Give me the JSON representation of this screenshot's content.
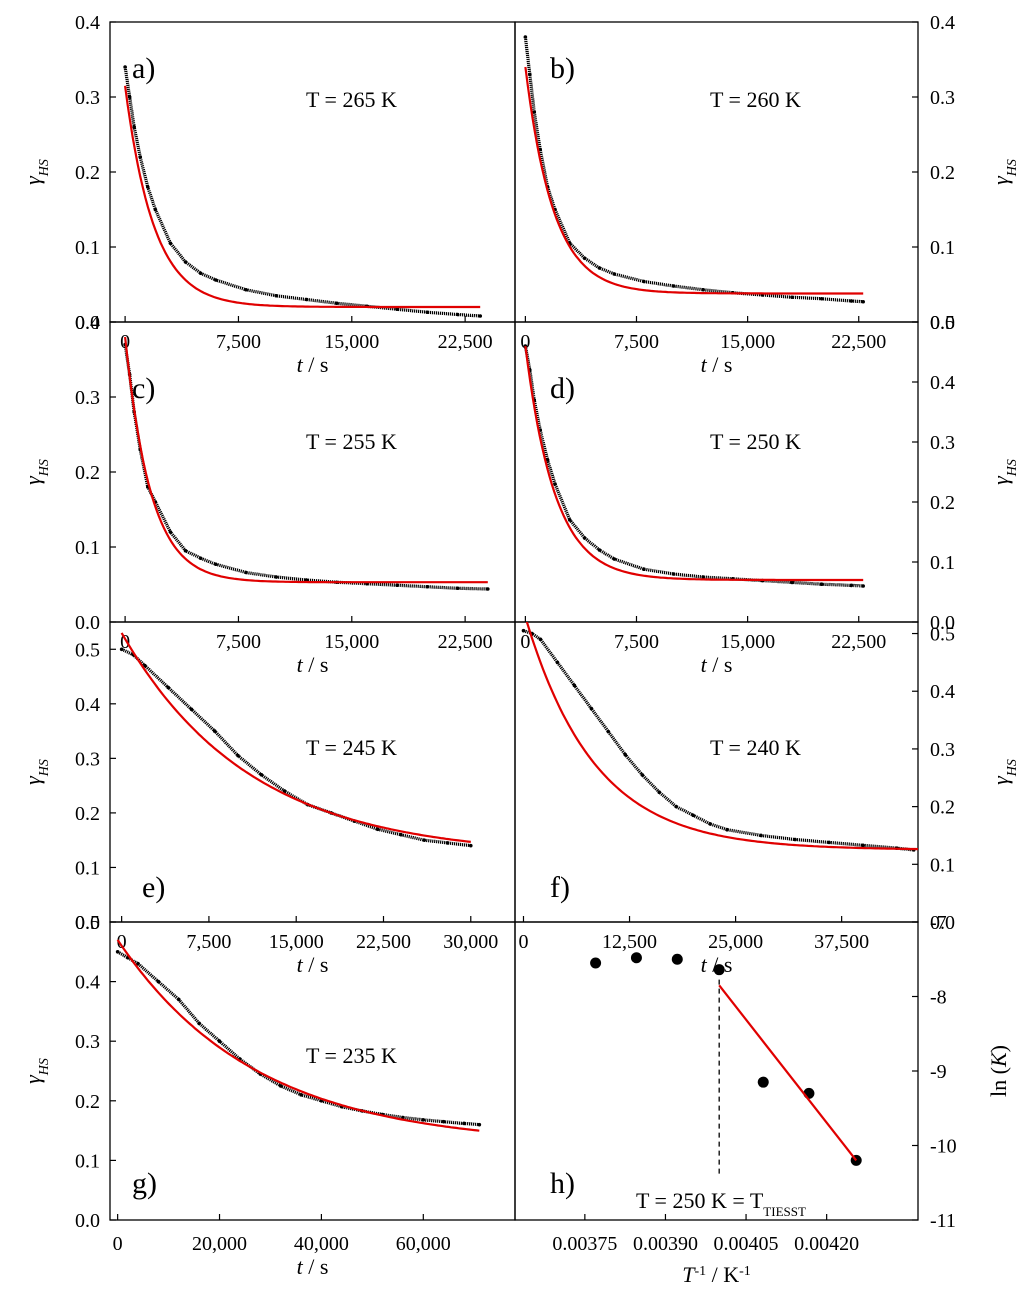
{
  "colors": {
    "data": "#000000",
    "fit": "#e00000",
    "axis": "#000000"
  },
  "chart_data": [
    {
      "id": "a",
      "type": "scatter",
      "panel_label": "a)",
      "annotation": "T = 265 K",
      "ylabel": "γHS",
      "ylabel_main": "γ",
      "ylabel_sub": "HS",
      "ylabel_side": "left",
      "xlabel_main": "t",
      "xlabel_unit": " / s",
      "ylim": [
        0,
        0.4
      ],
      "yticks": [
        "0.0",
        "0.1",
        "0.2",
        "0.3",
        "0.4"
      ],
      "xlim": [
        -1000,
        25800
      ],
      "xticks": [
        "0",
        "7,500",
        "15,000",
        "22,500"
      ],
      "series": [
        {
          "kind": "points",
          "x": [
            0,
            300,
            600,
            1000,
            1500,
            2000,
            3000,
            4000,
            5000,
            6000,
            8000,
            10000,
            12000,
            14000,
            16000,
            18000,
            20000,
            22000,
            23500
          ],
          "y": [
            0.34,
            0.3,
            0.26,
            0.22,
            0.18,
            0.15,
            0.105,
            0.08,
            0.065,
            0.056,
            0.043,
            0.035,
            0.03,
            0.025,
            0.021,
            0.017,
            0.013,
            0.01,
            0.008
          ]
        },
        {
          "kind": "fit",
          "y0": 0.02,
          "A": 0.295,
          "tau": 1900,
          "xmax": 23500
        }
      ]
    },
    {
      "id": "b",
      "type": "scatter",
      "panel_label": "b)",
      "annotation": "T = 260 K",
      "ylabel": "γHS",
      "ylabel_main": "γ",
      "ylabel_sub": "HS",
      "ylabel_side": "right",
      "xlabel_main": "t",
      "xlabel_unit": " / s",
      "ylim": [
        0,
        0.4
      ],
      "yticks": [
        "0.0",
        "0.1",
        "0.2",
        "0.3",
        "0.4"
      ],
      "xlim": [
        -700,
        26500
      ],
      "xticks": [
        "0",
        "7,500",
        "15,000",
        "22,500"
      ],
      "series": [
        {
          "kind": "points",
          "x": [
            0,
            300,
            600,
            1000,
            1500,
            2000,
            3000,
            4000,
            5000,
            6000,
            8000,
            10000,
            12000,
            14000,
            16000,
            18000,
            20000,
            22000,
            22800
          ],
          "y": [
            0.38,
            0.33,
            0.28,
            0.23,
            0.18,
            0.15,
            0.105,
            0.085,
            0.072,
            0.064,
            0.054,
            0.048,
            0.043,
            0.039,
            0.036,
            0.033,
            0.031,
            0.028,
            0.027
          ]
        },
        {
          "kind": "fit",
          "y0": 0.038,
          "A": 0.302,
          "tau": 1900,
          "xmax": 22800
        }
      ]
    },
    {
      "id": "c",
      "type": "scatter",
      "panel_label": "c)",
      "annotation": "T = 255 K",
      "ylabel": "γHS",
      "ylabel_main": "γ",
      "ylabel_sub": "HS",
      "ylabel_side": "left",
      "xlabel_main": "t",
      "xlabel_unit": " / s",
      "ylim": [
        0,
        0.4
      ],
      "yticks": [
        "0.0",
        "0.1",
        "0.2",
        "0.3",
        "0.4"
      ],
      "xlim": [
        -1000,
        25800
      ],
      "xticks": [
        "0",
        "7,500",
        "15,000",
        "22,500"
      ],
      "series": [
        {
          "kind": "points",
          "x": [
            0,
            300,
            600,
            1000,
            1500,
            2000,
            3000,
            4000,
            5000,
            6000,
            8000,
            10000,
            12000,
            14000,
            16000,
            18000,
            20000,
            22000,
            24000
          ],
          "y": [
            0.37,
            0.33,
            0.28,
            0.23,
            0.18,
            0.16,
            0.12,
            0.095,
            0.085,
            0.077,
            0.066,
            0.06,
            0.056,
            0.053,
            0.051,
            0.049,
            0.047,
            0.045,
            0.044
          ]
        },
        {
          "kind": "fit",
          "y0": 0.053,
          "A": 0.327,
          "tau": 1700,
          "xmax": 24000
        }
      ]
    },
    {
      "id": "d",
      "type": "scatter",
      "panel_label": "d)",
      "annotation": "T = 250 K",
      "ylabel": "γHS",
      "ylabel_main": "γ",
      "ylabel_sub": "HS",
      "ylabel_side": "right",
      "xlabel_main": "t",
      "xlabel_unit": " / s",
      "ylim": [
        0,
        0.5
      ],
      "yticks": [
        "0.0",
        "0.1",
        "0.2",
        "0.3",
        "0.4",
        "0.5"
      ],
      "xlim": [
        -700,
        26500
      ],
      "xticks": [
        "0",
        "7,500",
        "15,000",
        "22,500"
      ],
      "series": [
        {
          "kind": "points",
          "x": [
            0,
            300,
            600,
            1000,
            1500,
            2000,
            3000,
            4000,
            5000,
            6000,
            8000,
            10000,
            12000,
            14000,
            16000,
            18000,
            20000,
            22000,
            22800
          ],
          "y": [
            0.46,
            0.42,
            0.37,
            0.32,
            0.27,
            0.23,
            0.17,
            0.14,
            0.12,
            0.105,
            0.088,
            0.08,
            0.075,
            0.072,
            0.069,
            0.066,
            0.063,
            0.061,
            0.06
          ]
        },
        {
          "kind": "fit",
          "y0": 0.07,
          "A": 0.39,
          "tau": 2000,
          "xmax": 22800
        }
      ]
    },
    {
      "id": "e",
      "type": "scatter",
      "panel_label": "e)",
      "annotation": "T = 245 K",
      "ylabel": "γHS",
      "ylabel_main": "γ",
      "ylabel_sub": "HS",
      "ylabel_side": "left",
      "xlabel_main": "t",
      "xlabel_unit": " / s",
      "ylim": [
        0,
        0.55
      ],
      "yticks": [
        "0.0",
        "0.1",
        "0.2",
        "0.3",
        "0.4",
        "0.5"
      ],
      "xlim": [
        -1000,
        33800
      ],
      "xticks": [
        "0",
        "7,500",
        "15,000",
        "22,500",
        "30,000"
      ],
      "series": [
        {
          "kind": "points",
          "x": [
            0,
            1000,
            2000,
            4000,
            6000,
            8000,
            10000,
            12000,
            14000,
            16000,
            18000,
            20000,
            22000,
            24000,
            26000,
            28000,
            30000
          ],
          "y": [
            0.5,
            0.49,
            0.47,
            0.43,
            0.39,
            0.35,
            0.305,
            0.27,
            0.24,
            0.215,
            0.2,
            0.185,
            0.17,
            0.16,
            0.15,
            0.145,
            0.14
          ]
        },
        {
          "kind": "fit",
          "y0": 0.12,
          "A": 0.41,
          "tau": 11000,
          "xmax": 30000
        }
      ]
    },
    {
      "id": "f",
      "type": "scatter",
      "panel_label": "f)",
      "annotation": "T = 240 K",
      "ylabel": "γHS",
      "ylabel_main": "γ",
      "ylabel_sub": "HS",
      "ylabel_side": "right",
      "xlabel_main": "t",
      "xlabel_unit": " / s",
      "ylim": [
        0,
        0.52
      ],
      "yticks": [
        "0.0",
        "0.1",
        "0.2",
        "0.3",
        "0.4",
        "0.5"
      ],
      "xlim": [
        -1000,
        46500
      ],
      "xticks": [
        "0",
        "12,500",
        "25,000",
        "37,500"
      ],
      "series": [
        {
          "kind": "points",
          "x": [
            0,
            1000,
            2000,
            4000,
            6000,
            8000,
            10000,
            12000,
            14000,
            16000,
            18000,
            20000,
            22000,
            24000,
            28000,
            32000,
            36000,
            40000,
            44000,
            46000
          ],
          "y": [
            0.505,
            0.5,
            0.49,
            0.45,
            0.41,
            0.37,
            0.33,
            0.29,
            0.255,
            0.225,
            0.2,
            0.185,
            0.17,
            0.16,
            0.15,
            0.143,
            0.138,
            0.133,
            0.128,
            0.125
          ]
        },
        {
          "kind": "fit",
          "y0": 0.125,
          "A": 0.415,
          "tau": 8200,
          "xmax": 46500
        }
      ]
    },
    {
      "id": "g",
      "type": "scatter",
      "panel_label": "g)",
      "annotation": "T = 235 K",
      "ylabel": "γHS",
      "ylabel_main": "γ",
      "ylabel_sub": "HS",
      "ylabel_side": "left",
      "xlabel_main": "t",
      "xlabel_unit": " / s",
      "ylim": [
        0,
        0.5
      ],
      "yticks": [
        "0.0",
        "0.1",
        "0.2",
        "0.3",
        "0.4",
        "0.5"
      ],
      "xlim": [
        -1500,
        78000
      ],
      "xticks": [
        "0",
        "20,000",
        "40,000",
        "60,000"
      ],
      "series": [
        {
          "kind": "points",
          "x": [
            0,
            2000,
            4000,
            8000,
            12000,
            16000,
            20000,
            24000,
            28000,
            32000,
            36000,
            40000,
            44000,
            48000,
            52000,
            56000,
            60000,
            64000,
            68000,
            71000
          ],
          "y": [
            0.45,
            0.44,
            0.43,
            0.4,
            0.37,
            0.33,
            0.3,
            0.27,
            0.245,
            0.225,
            0.21,
            0.2,
            0.19,
            0.183,
            0.177,
            0.172,
            0.168,
            0.165,
            0.162,
            0.16
          ]
        },
        {
          "kind": "fit",
          "y0": 0.125,
          "A": 0.345,
          "tau": 27000,
          "xmax": 71000
        }
      ]
    },
    {
      "id": "h",
      "type": "scatter",
      "panel_label": "h)",
      "annotation": "T = 250 K = T",
      "annotation_sub": "TIESST",
      "ylabel": "ln (K)",
      "ylabel_pre": "ln (",
      "ylabel_var": "K",
      "ylabel_post": ")",
      "ylabel_side": "right",
      "xlabel": "T-1 / K-1",
      "xlabel_var": "T",
      "xlabel_sup": "-1",
      "xlabel_mid": " / K",
      "xlabel_sup2": "-1",
      "ylim": [
        -11,
        -7
      ],
      "yticks": [
        "-11",
        "-10",
        "-9",
        "-8",
        "-7"
      ],
      "ytick_values": [
        -11,
        -10,
        -9,
        -8,
        -7
      ],
      "xlim": [
        0.00362,
        0.00437
      ],
      "xticks": [
        "0.00375",
        "0.00390",
        "0.00405",
        "0.00420"
      ],
      "xtick_values": [
        0.00375,
        0.0039,
        0.00405,
        0.0042
      ],
      "series": [
        {
          "kind": "points",
          "x": [
            0.00377,
            0.003846,
            0.003922,
            0.004,
            0.004082,
            0.004167,
            0.004255
          ],
          "y": [
            -7.55,
            -7.48,
            -7.5,
            -7.64,
            -9.15,
            -9.3,
            -10.2
          ]
        },
        {
          "kind": "fit_line",
          "x": [
            0.004,
            0.004255
          ],
          "y": [
            -7.85,
            -10.2
          ]
        }
      ],
      "marker_line_x": 0.004
    }
  ]
}
